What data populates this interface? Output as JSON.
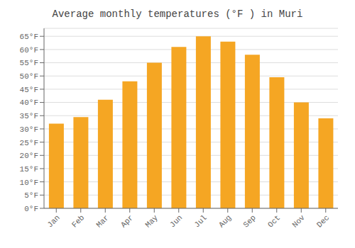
{
  "chart_data": {
    "type": "bar",
    "title": "Average monthly temperatures (°F ) in Muri",
    "categories": [
      "Jan",
      "Feb",
      "Mar",
      "Apr",
      "May",
      "Jun",
      "Jul",
      "Aug",
      "Sep",
      "Oct",
      "Nov",
      "Dec"
    ],
    "values": [
      32,
      34.5,
      41,
      48,
      55,
      61,
      65,
      63,
      58,
      49.5,
      40,
      34
    ],
    "color": "#F5A623",
    "ylim": [
      0,
      68
    ],
    "yticks": [
      {
        "value": 0,
        "label": "0°F"
      },
      {
        "value": 5,
        "label": "5°F"
      },
      {
        "value": 10,
        "label": "10°F"
      },
      {
        "value": 15,
        "label": "15°F"
      },
      {
        "value": 20,
        "label": "20°F"
      },
      {
        "value": 25,
        "label": "25°F"
      },
      {
        "value": 30,
        "label": "30°F"
      },
      {
        "value": 35,
        "label": "35°F"
      },
      {
        "value": 40,
        "label": "40°F"
      },
      {
        "value": 45,
        "label": "45°F"
      },
      {
        "value": 50,
        "label": "50°F"
      },
      {
        "value": 55,
        "label": "55°F"
      },
      {
        "value": 60,
        "label": "60°F"
      },
      {
        "value": 65,
        "label": "65°F"
      }
    ],
    "grid": true
  }
}
